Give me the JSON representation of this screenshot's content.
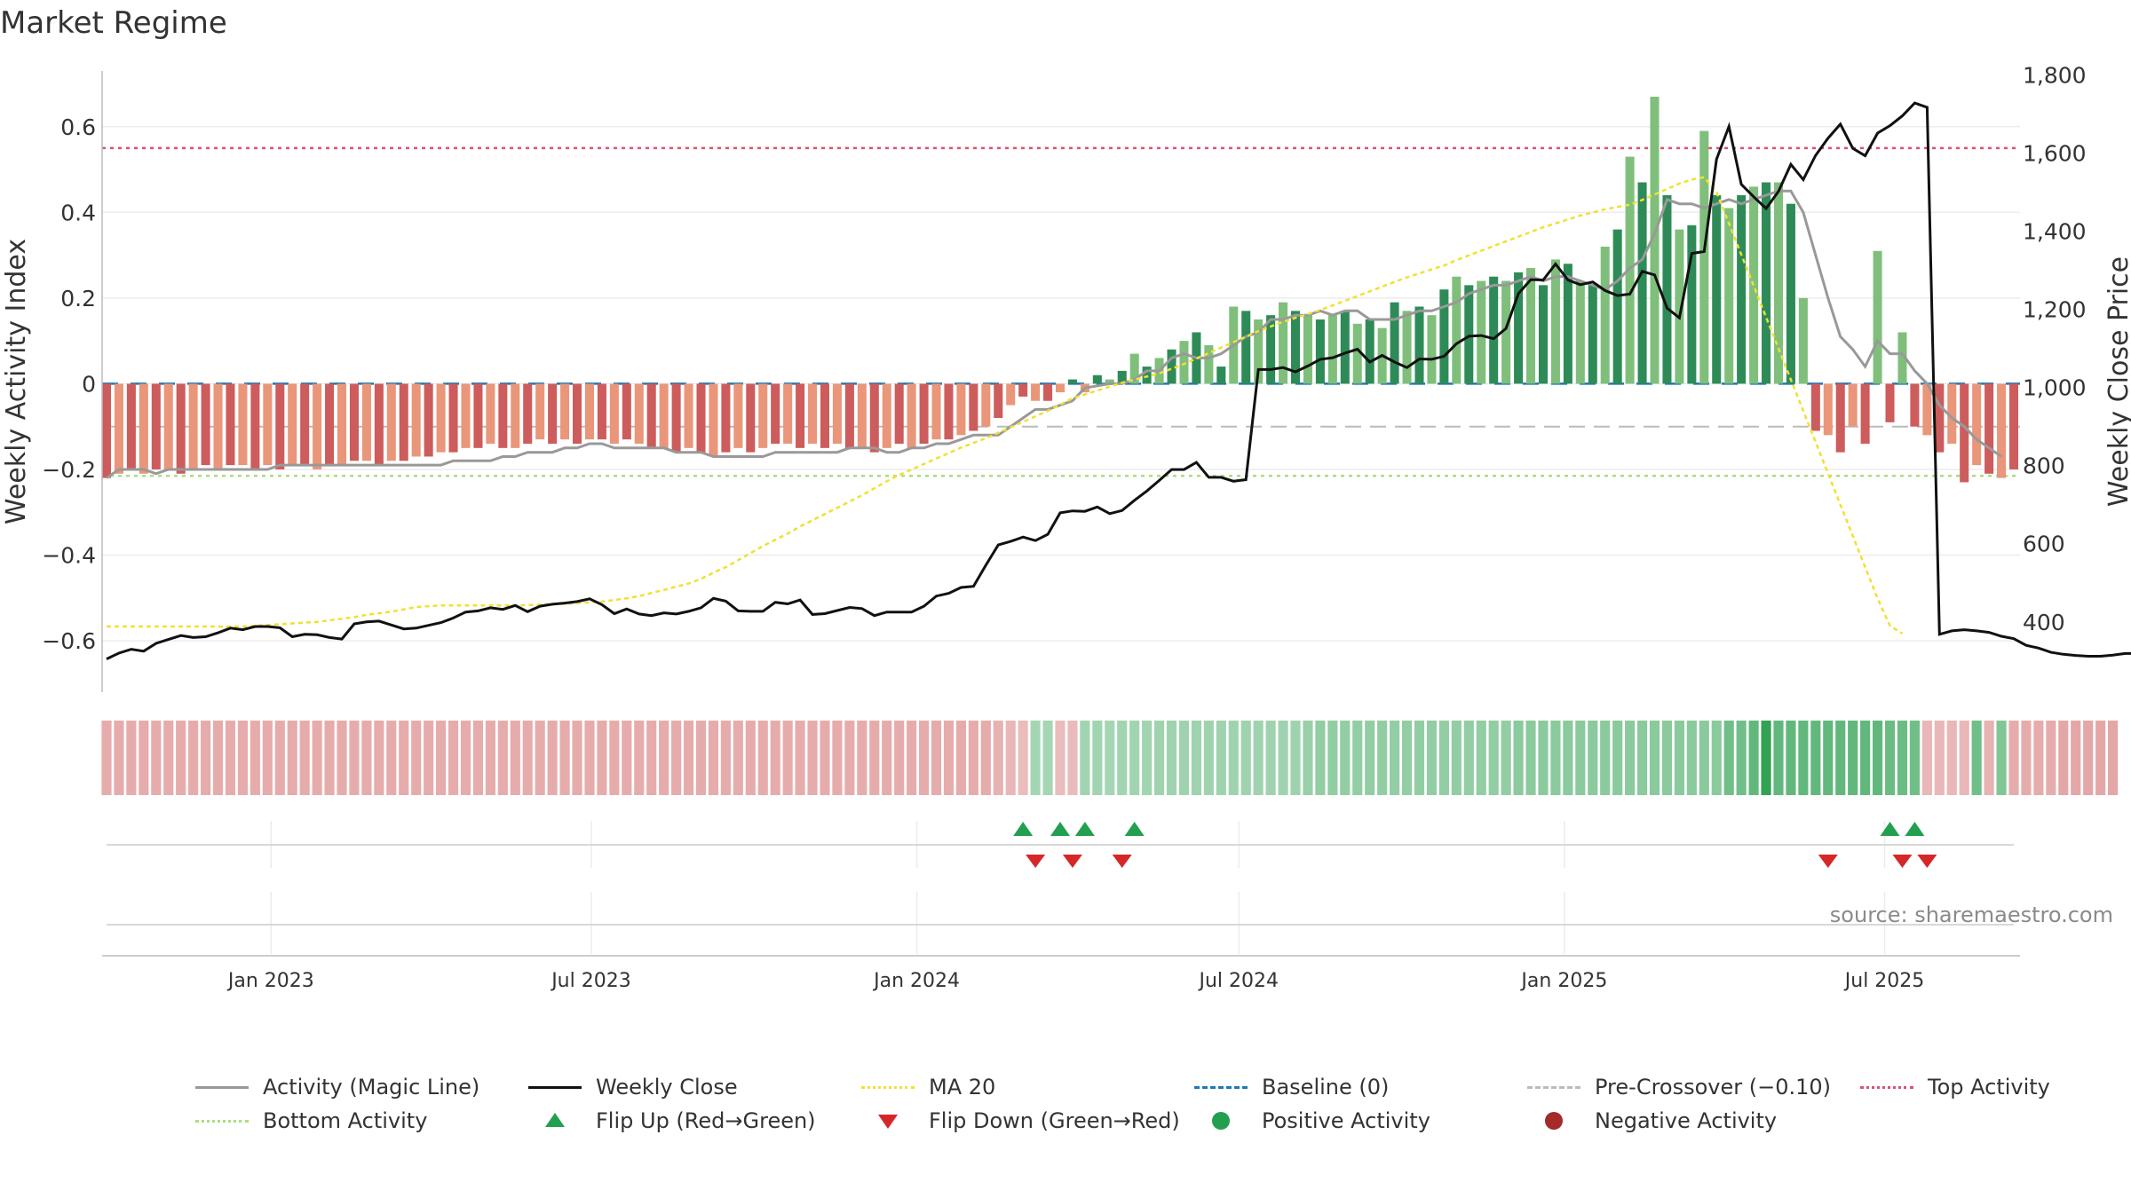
{
  "title": "Market Regime",
  "source": "source: sharemaestro.com",
  "colors": {
    "dark_green": "#2e8b57",
    "light_green": "#7fbf7b",
    "dark_red": "#cd5c5c",
    "light_red": "#e9967a",
    "magic_line": "#999999",
    "close_line": "#111111",
    "ma20": "#f0e130",
    "baseline": "#1f77b4",
    "pre_cross": "#bbbbbb",
    "top": "#d9536f",
    "bottom": "#a8e07a",
    "flip_up": "#22a050",
    "flip_down": "#d62728"
  },
  "chart_data": {
    "type": "bar",
    "x_start": "2022-09-30",
    "x_interval": "weekly",
    "xtick_labels": [
      "Jan 2023",
      "Jul 2023",
      "Jan 2024",
      "Jul 2024",
      "Jan 2025",
      "Jul 2025"
    ],
    "xtick_dates": [
      "2023-01-01",
      "2023-07-01",
      "2024-01-01",
      "2024-07-01",
      "2025-01-01",
      "2025-07-01"
    ],
    "y_left": {
      "label": "Weekly Activity Index",
      "ylim": [
        -0.72,
        0.73
      ],
      "ticks": [
        -0.6,
        -0.4,
        -0.2,
        0,
        0.2,
        0.4,
        0.6
      ],
      "tick_labels": [
        "−0.6",
        "−0.4",
        "−0.2",
        "0",
        "0.2",
        "0.4",
        "0.6"
      ]
    },
    "y_right": {
      "label": "Weekly Close Price",
      "ylim": [
        220,
        1810
      ],
      "ticks": [
        400,
        600,
        800,
        1000,
        1200,
        1400,
        1600,
        1800
      ],
      "tick_labels": [
        "400",
        "600",
        "800",
        "1,000",
        "1,200",
        "1,400",
        "1,600",
        "1,800"
      ]
    },
    "reference_lines": {
      "top_activity": 0.55,
      "bottom_activity": -0.215,
      "baseline": 0,
      "pre_crossover": -0.1
    },
    "activity": [
      -0.22,
      -0.21,
      -0.2,
      -0.21,
      -0.2,
      -0.2,
      -0.21,
      -0.2,
      -0.19,
      -0.2,
      -0.19,
      -0.19,
      -0.2,
      -0.19,
      -0.2,
      -0.19,
      -0.19,
      -0.2,
      -0.19,
      -0.19,
      -0.18,
      -0.18,
      -0.19,
      -0.18,
      -0.18,
      -0.17,
      -0.17,
      -0.16,
      -0.16,
      -0.15,
      -0.15,
      -0.14,
      -0.15,
      -0.15,
      -0.14,
      -0.13,
      -0.14,
      -0.13,
      -0.14,
      -0.13,
      -0.13,
      -0.14,
      -0.13,
      -0.14,
      -0.15,
      -0.15,
      -0.16,
      -0.15,
      -0.16,
      -0.17,
      -0.16,
      -0.15,
      -0.16,
      -0.15,
      -0.14,
      -0.14,
      -0.15,
      -0.14,
      -0.15,
      -0.14,
      -0.15,
      -0.15,
      -0.16,
      -0.15,
      -0.14,
      -0.15,
      -0.14,
      -0.13,
      -0.13,
      -0.12,
      -0.11,
      -0.1,
      -0.08,
      -0.05,
      -0.03,
      -0.04,
      -0.04,
      -0.02,
      0.01,
      -0.02,
      0.02,
      0.01,
      0.03,
      0.07,
      0.04,
      0.06,
      0.08,
      0.1,
      0.12,
      0.09,
      0.04,
      0.18,
      0.17,
      0.15,
      0.16,
      0.19,
      0.17,
      0.16,
      0.15,
      0.16,
      0.17,
      0.14,
      0.15,
      0.13,
      0.19,
      0.17,
      0.18,
      0.16,
      0.22,
      0.25,
      0.23,
      0.24,
      0.25,
      0.24,
      0.26,
      0.27,
      0.23,
      0.29,
      0.28,
      0.24,
      0.23,
      0.32,
      0.36,
      0.53,
      0.47,
      0.67,
      0.44,
      0.36,
      0.37,
      0.59,
      0.44,
      0.41,
      0.44,
      0.46,
      0.47,
      0.47,
      0.42,
      0.2,
      -0.11,
      -0.12,
      -0.16,
      -0.1,
      -0.14,
      0.31,
      -0.09,
      0.12,
      -0.1,
      -0.12,
      -0.16,
      -0.14,
      -0.23,
      -0.19,
      -0.21,
      -0.22,
      -0.2
    ],
    "magic_line": [
      -0.22,
      -0.2,
      -0.2,
      -0.2,
      -0.21,
      -0.2,
      -0.2,
      -0.2,
      -0.2,
      -0.2,
      -0.2,
      -0.2,
      -0.2,
      -0.2,
      -0.19,
      -0.19,
      -0.19,
      -0.19,
      -0.19,
      -0.19,
      -0.19,
      -0.19,
      -0.19,
      -0.19,
      -0.19,
      -0.19,
      -0.19,
      -0.19,
      -0.18,
      -0.18,
      -0.18,
      -0.18,
      -0.17,
      -0.17,
      -0.16,
      -0.16,
      -0.16,
      -0.15,
      -0.15,
      -0.14,
      -0.14,
      -0.15,
      -0.15,
      -0.15,
      -0.15,
      -0.15,
      -0.16,
      -0.16,
      -0.16,
      -0.17,
      -0.17,
      -0.17,
      -0.17,
      -0.17,
      -0.16,
      -0.16,
      -0.16,
      -0.16,
      -0.16,
      -0.16,
      -0.15,
      -0.15,
      -0.15,
      -0.16,
      -0.16,
      -0.15,
      -0.15,
      -0.14,
      -0.14,
      -0.13,
      -0.12,
      -0.12,
      -0.12,
      -0.1,
      -0.08,
      -0.06,
      -0.06,
      -0.05,
      -0.04,
      -0.01,
      -0.005,
      0,
      0,
      0.01,
      0.03,
      0.03,
      0.06,
      0.07,
      0.06,
      0.06,
      0.07,
      0.09,
      0.11,
      0.12,
      0.15,
      0.15,
      0.16,
      0.16,
      0.17,
      0.16,
      0.17,
      0.17,
      0.15,
      0.15,
      0.15,
      0.16,
      0.17,
      0.17,
      0.18,
      0.19,
      0.21,
      0.22,
      0.23,
      0.23,
      0.24,
      0.25,
      0.24,
      0.25,
      0.25,
      0.24,
      0.23,
      0.22,
      0.24,
      0.27,
      0.29,
      0.35,
      0.43,
      0.42,
      0.42,
      0.41,
      0.42,
      0.43,
      0.42,
      0.43,
      0.44,
      0.45,
      0.45,
      0.4,
      0.3,
      0.2,
      0.11,
      0.08,
      0.04,
      0.1,
      0.07,
      0.07,
      0.03,
      0,
      -0.05,
      -0.08,
      -0.1,
      -0.13,
      -0.15,
      -0.17
    ],
    "weekly_close": [
      305,
      320,
      330,
      325,
      345,
      355,
      365,
      360,
      362,
      372,
      384,
      380,
      388,
      388,
      385,
      362,
      368,
      367,
      360,
      356,
      395,
      400,
      402,
      392,
      382,
      384,
      391,
      398,
      410,
      425,
      428,
      436,
      432,
      442,
      426,
      440,
      445,
      448,
      452,
      459,
      444,
      421,
      433,
      420,
      416,
      423,
      420,
      427,
      436,
      460,
      453,
      428,
      427,
      427,
      450,
      446,
      456,
      419,
      421,
      429,
      437,
      434,
      416,
      425,
      425,
      425,
      440,
      466,
      473,
      488,
      491,
      545,
      597,
      606,
      617,
      608,
      624,
      679,
      684,
      683,
      694,
      677,
      685,
      711,
      735,
      762,
      790,
      790,
      808,
      770,
      770,
      760,
      764,
      1046,
      1046,
      1051,
      1040,
      1055,
      1072,
      1076,
      1088,
      1098,
      1065,
      1082,
      1065,
      1051,
      1073,
      1072,
      1080,
      1112,
      1131,
      1133,
      1125,
      1151,
      1240,
      1276,
      1275,
      1316,
      1275,
      1263,
      1270,
      1248,
      1235,
      1239,
      1297,
      1288,
      1203,
      1178,
      1343,
      1348,
      1584,
      1668,
      1520,
      1488,
      1458,
      1502,
      1571,
      1532,
      1594,
      1638,
      1674,
      1612,
      1593,
      1651,
      1670,
      1695,
      1728,
      1717,
      368,
      377,
      380,
      377,
      373,
      363,
      357,
      340,
      333,
      322,
      317,
      314,
      312,
      312,
      315,
      319,
      319,
      320,
      317,
      328,
      316,
      318,
      326,
      323,
      309,
      324
    ],
    "ma20": [
      388,
      388,
      388,
      388,
      388,
      388,
      388,
      388,
      388,
      388,
      388,
      388,
      390,
      392,
      394,
      396,
      398,
      400,
      404,
      408,
      412,
      418,
      422,
      426,
      432,
      438,
      440,
      442,
      442,
      442,
      442,
      442,
      442,
      442,
      443,
      444,
      445,
      446,
      448,
      450,
      452,
      456,
      460,
      466,
      474,
      482,
      490,
      498,
      510,
      526,
      540,
      558,
      576,
      594,
      610,
      626,
      644,
      660,
      676,
      692,
      708,
      724,
      742,
      760,
      776,
      790,
      804,
      818,
      832,
      846,
      858,
      870,
      884,
      898,
      912,
      926,
      940,
      956,
      972,
      982,
      992,
      1002,
      1012,
      1020,
      1028,
      1036,
      1048,
      1060,
      1074,
      1088,
      1102,
      1116,
      1130,
      1144,
      1156,
      1168,
      1178,
      1188,
      1198,
      1210,
      1222,
      1234,
      1246,
      1258,
      1270,
      1282,
      1292,
      1302,
      1312,
      1326,
      1338,
      1350,
      1362,
      1374,
      1386,
      1398,
      1410,
      1420,
      1430,
      1440,
      1448,
      1456,
      1462,
      1468,
      1480,
      1494,
      1508,
      1522,
      1532,
      1538,
      1500,
      1420,
      1340,
      1260,
      1180,
      1100,
      1020,
      940,
      860,
      780,
      700,
      620,
      540,
      460,
      390,
      370
    ],
    "regime_strip": [
      -0.35,
      -0.35,
      -0.35,
      -0.35,
      -0.35,
      -0.35,
      -0.35,
      -0.35,
      -0.35,
      -0.35,
      -0.35,
      -0.35,
      -0.35,
      -0.35,
      -0.35,
      -0.35,
      -0.35,
      -0.35,
      -0.35,
      -0.35,
      -0.35,
      -0.35,
      -0.35,
      -0.35,
      -0.35,
      -0.35,
      -0.35,
      -0.35,
      -0.35,
      -0.35,
      -0.35,
      -0.35,
      -0.35,
      -0.35,
      -0.35,
      -0.35,
      -0.35,
      -0.35,
      -0.35,
      -0.35,
      -0.35,
      -0.35,
      -0.35,
      -0.35,
      -0.35,
      -0.35,
      -0.35,
      -0.35,
      -0.35,
      -0.35,
      -0.35,
      -0.35,
      -0.35,
      -0.35,
      -0.35,
      -0.35,
      -0.35,
      -0.35,
      -0.35,
      -0.35,
      -0.35,
      -0.35,
      -0.35,
      -0.35,
      -0.35,
      -0.35,
      -0.35,
      -0.35,
      -0.35,
      -0.35,
      -0.35,
      -0.35,
      -0.3,
      -0.25,
      -0.2,
      0.18,
      0.18,
      -0.2,
      -0.22,
      0.2,
      0.2,
      0.18,
      0.2,
      0.2,
      0.2,
      0.22,
      0.22,
      0.22,
      0.22,
      0.22,
      0.22,
      0.22,
      0.22,
      0.22,
      0.22,
      0.22,
      0.22,
      0.25,
      0.3,
      0.3,
      0.3,
      0.3,
      0.3,
      0.3,
      0.3,
      0.3,
      0.3,
      0.3,
      0.3,
      0.3,
      0.3,
      0.3,
      0.3,
      0.3,
      0.35,
      0.35,
      0.35,
      0.35,
      0.35,
      0.35,
      0.35,
      0.35,
      0.35,
      0.35,
      0.35,
      0.35,
      0.35,
      0.35,
      0.35,
      0.35,
      0.35,
      0.5,
      0.5,
      0.6,
      0.9,
      0.6,
      0.6,
      0.6,
      0.6,
      0.6,
      0.6,
      0.6,
      0.6,
      0.6,
      0.55,
      0.55,
      0.5,
      -0.25,
      -0.25,
      -0.25,
      -0.25,
      0.5,
      -0.3,
      0.4,
      -0.35,
      -0.35,
      -0.35,
      -0.35,
      -0.4,
      -0.4,
      -0.4,
      -0.4,
      -0.4
    ],
    "flip_up_weeks": [
      74,
      77,
      79,
      83,
      144,
      146
    ],
    "flip_down_weeks": [
      75,
      78,
      82,
      139,
      145,
      147
    ],
    "positive_activity_weeks": [],
    "negative_activity_weeks": []
  },
  "legend": [
    {
      "key": "magic",
      "label": "Activity (Magic Line)"
    },
    {
      "key": "close",
      "label": "Weekly Close"
    },
    {
      "key": "ma20",
      "label": "MA 20"
    },
    {
      "key": "baseline",
      "label": "Baseline (0)"
    },
    {
      "key": "precross",
      "label": "Pre-Crossover (−0.10)"
    },
    {
      "key": "top",
      "label": "Top Activity"
    },
    {
      "key": "bottom",
      "label": "Bottom Activity"
    },
    {
      "key": "flipup",
      "label": "Flip Up (Red→Green)"
    },
    {
      "key": "flipdown",
      "label": "Flip Down (Green→Red)"
    },
    {
      "key": "posact",
      "label": "Positive Activity"
    },
    {
      "key": "negact",
      "label": "Negative Activity"
    }
  ]
}
